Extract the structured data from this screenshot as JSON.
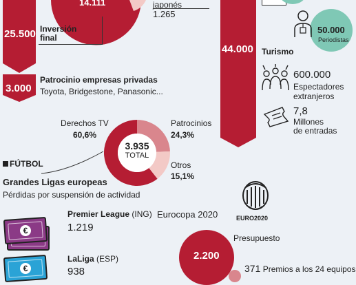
{
  "top": {
    "pie_value": "14.111",
    "japones": "japonés",
    "japones_value": "1.265",
    "inversion_value": "25.500",
    "inversion_label_1": "Inversión",
    "inversion_label_2": "final",
    "tourism_bar_value": "44.000",
    "tourism_label": "Turismo",
    "periodistas_value": "50.000",
    "periodistas_label": "Periodistas",
    "espectadores_value": "600.000",
    "espectadores_label_1": "Espectadores",
    "espectadores_label_2": "extranjeros",
    "entradas_value": "7,8",
    "entradas_label_1": "Millones",
    "entradas_label_2": "de entradas"
  },
  "patrocinio": {
    "value": "3.000",
    "title": "Patrocinio empresas privadas",
    "companies": "Toyota, Bridgestone, Panasonic..."
  },
  "donut": {
    "center_value": "3.935",
    "center_label": "TOTAL",
    "derechos_label": "Derechos TV",
    "derechos_value": "60,6%",
    "patrocinios_label": "Patrocinios",
    "patrocinios_value": "24,3%",
    "otros_label": "Otros",
    "otros_value": "15,1%",
    "colors": {
      "derechos": "#b51d33",
      "patrocinios": "#d9868d",
      "otros": "#f3c9c6"
    }
  },
  "futbol": {
    "section_label": "FÚTBOL",
    "title": "Grandes Ligas europeas",
    "subtitle": "Pérdidas por suspensión de actividad",
    "premier_label": "Premier League",
    "premier_country": " (ING)",
    "premier_value": "1.219",
    "laliga_label": "LaLiga",
    "laliga_country": " (ESP)",
    "laliga_value": "938",
    "euro_title": "Eurocopa 2020",
    "euro_logo_text": "EURO2020",
    "presupuesto_label": "Presupuesto",
    "presupuesto_value": "2.200",
    "premios_value": "371",
    "premios_label": "Premios a los 24 equipos"
  },
  "colors": {
    "accent": "#b51d33",
    "background": "#edf1f6",
    "teal": "#7fc8b5",
    "money_purple": "#8b3a86",
    "money_blue": "#2aa3d6"
  }
}
